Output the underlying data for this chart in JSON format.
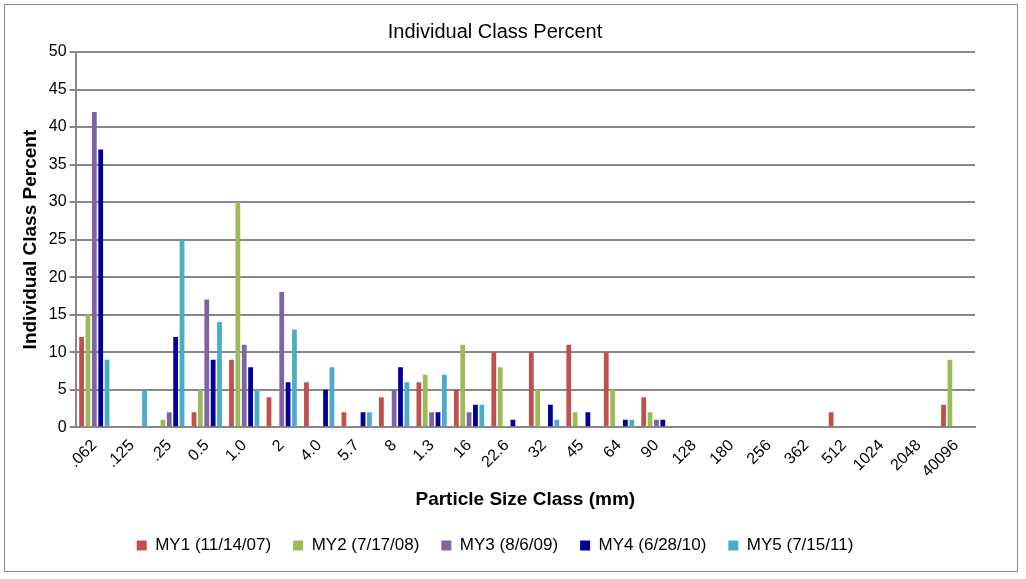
{
  "chart_data": {
    "type": "bar",
    "title": "Individual Class Percent",
    "xlabel": "Particle Size Class (mm)",
    "ylabel": "Individual Class Percent",
    "categories": [
      ".062",
      ".125",
      ".25",
      "0.5",
      "1.0",
      "2",
      "4.0",
      "5.7",
      "8",
      "1.3",
      "16",
      "22.6",
      "32",
      "45",
      "64",
      "90",
      "128",
      "180",
      "256",
      "362",
      "512",
      "1024",
      "2048",
      "40096"
    ],
    "series": [
      {
        "name": "MY1 (11/14/07)",
        "color": "#c0504d",
        "values": [
          12,
          0,
          0,
          2,
          9,
          4,
          6,
          2,
          4,
          6,
          5,
          10,
          10,
          11,
          10,
          4,
          0,
          0,
          0,
          0,
          2,
          0,
          0,
          3
        ]
      },
      {
        "name": "MY2 (7/17/08)",
        "color": "#9bbb59",
        "values": [
          15,
          0,
          1,
          5,
          30,
          0,
          0,
          0,
          0,
          7,
          11,
          8,
          5,
          2,
          5,
          2,
          0,
          0,
          0,
          0,
          0,
          0,
          0,
          9
        ]
      },
      {
        "name": "MY3 (8/6/09)",
        "color": "#8064a2",
        "values": [
          42,
          0,
          2,
          17,
          11,
          18,
          0,
          0,
          5,
          2,
          2,
          0,
          0,
          0,
          0,
          1,
          0,
          0,
          0,
          0,
          0,
          0,
          0,
          0
        ]
      },
      {
        "name": "MY4 (6/28/10)",
        "color": "#000099",
        "values": [
          37,
          0,
          12,
          9,
          8,
          6,
          5,
          2,
          8,
          2,
          3,
          1,
          3,
          2,
          1,
          1,
          0,
          0,
          0,
          0,
          0,
          0,
          0,
          0
        ]
      },
      {
        "name": "MY5 (7/15/11)",
        "color": "#4bacc6",
        "values": [
          9,
          5,
          25,
          14,
          5,
          13,
          8,
          2,
          6,
          7,
          3,
          0,
          1,
          0,
          1,
          0,
          0,
          0,
          0,
          0,
          0,
          0,
          0,
          0
        ]
      }
    ],
    "ylim": [
      0,
      50
    ],
    "yticks": [
      0,
      5,
      10,
      15,
      20,
      25,
      30,
      35,
      40,
      45,
      50
    ],
    "grid": "y",
    "legend": "bottom"
  }
}
